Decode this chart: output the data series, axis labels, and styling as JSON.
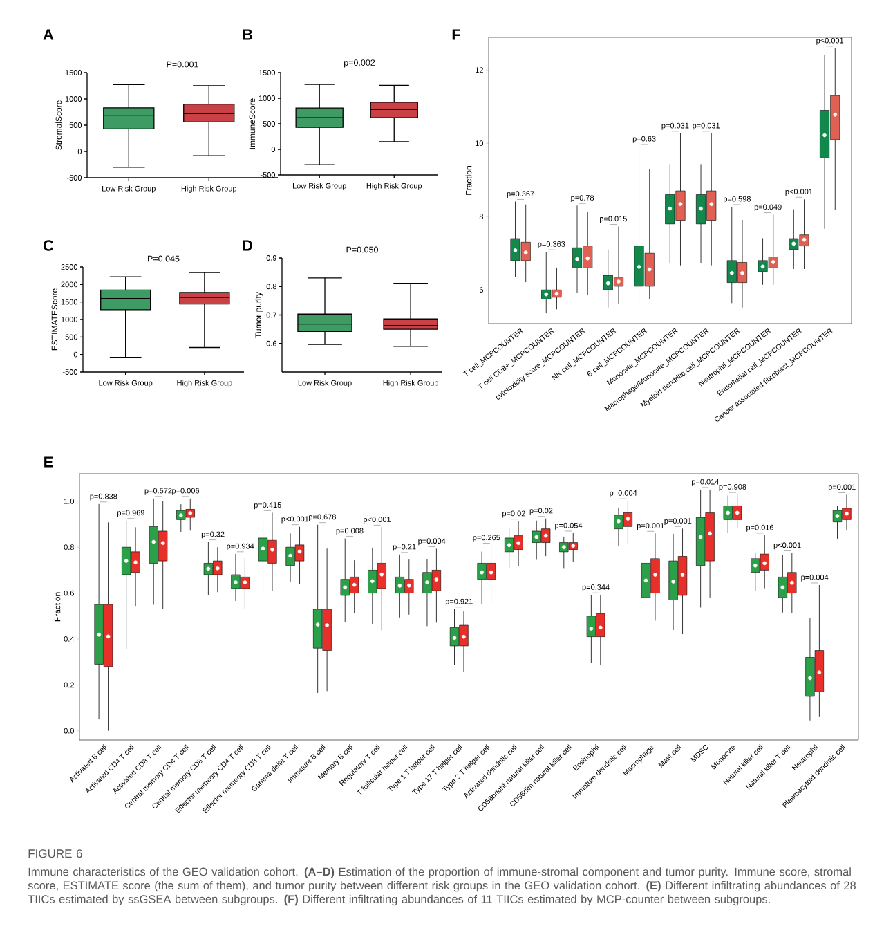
{
  "chart_data": [
    {
      "type": "box",
      "title": "P=0.001",
      "ylabel": "StromalScore",
      "categories": [
        "Low Risk Group",
        "High Risk Group"
      ],
      "colors": [
        "#3e9b63",
        "#c94045"
      ],
      "ylim": [
        -500,
        1500
      ],
      "yticks": [
        -500,
        0,
        500,
        1000,
        1500
      ],
      "boxes": [
        {
          "low": -300,
          "q1": 430,
          "median": 690,
          "q3": 830,
          "high": 1270
        },
        {
          "low": -80,
          "q1": 560,
          "median": 720,
          "q3": 900,
          "high": 1250
        }
      ],
      "annotations": [
        "A"
      ]
    },
    {
      "type": "box",
      "title": "p=0.002",
      "ylabel": "ImmuneScore",
      "categories": [
        "Low Risk Group",
        "High Risk Group"
      ],
      "colors": [
        "#3e9b63",
        "#c94045"
      ],
      "ylim": [
        -500,
        1500
      ],
      "yticks": [
        -500,
        0,
        500,
        1000,
        1500
      ],
      "boxes": [
        {
          "low": -300,
          "q1": 430,
          "median": 620,
          "q3": 810,
          "high": 1270
        },
        {
          "low": 150,
          "q1": 620,
          "median": 780,
          "q3": 920,
          "high": 1250
        }
      ],
      "annotations": [
        "B"
      ]
    },
    {
      "type": "box",
      "title": "P=0.045",
      "ylabel": "ESTIMATEScore",
      "categories": [
        "Low Risk Group",
        "High Risk Group"
      ],
      "colors": [
        "#3e9b63",
        "#c94045"
      ],
      "ylim": [
        -500,
        2500
      ],
      "yticks": [
        -500,
        0,
        500,
        1000,
        1500,
        2000,
        2500
      ],
      "boxes": [
        {
          "low": -80,
          "q1": 1280,
          "median": 1600,
          "q3": 1840,
          "high": 2220
        },
        {
          "low": 200,
          "q1": 1440,
          "median": 1630,
          "q3": 1770,
          "high": 2340
        }
      ],
      "annotations": [
        "C"
      ]
    },
    {
      "type": "box",
      "title": "P=0.050",
      "ylabel": "Tumor purity",
      "categories": [
        "Low Risk Group",
        "High Risk Group"
      ],
      "colors": [
        "#3e9b63",
        "#c94045"
      ],
      "ylim": [
        0.5,
        0.9
      ],
      "yticks": [
        0.6,
        0.7,
        0.8,
        0.9
      ],
      "boxes": [
        {
          "low": 0.597,
          "q1": 0.642,
          "median": 0.668,
          "q3": 0.703,
          "high": 0.83
        },
        {
          "low": 0.59,
          "q1": 0.65,
          "median": 0.663,
          "q3": 0.686,
          "high": 0.811
        }
      ],
      "annotations": [
        "D"
      ]
    },
    {
      "type": "box",
      "ylabel": "Fraction",
      "ylim": [
        -0.04,
        1.12
      ],
      "yticks": [
        {
          "value": 0,
          "label": "0.0"
        },
        0.2,
        0.4,
        0.6,
        0.8,
        {
          "value": 1,
          "label": "1.0"
        }
      ],
      "categories": [
        "Activated B cell",
        "Activated CD4 T cell",
        "Activated CD8 T cell",
        "Central memory CD4 T cell",
        "Central memory CD8 T cell",
        "Effector memeory CD4 T cell",
        "Effector memeory CD8 T cell",
        "Gamma delta T cell",
        "Immature  B cell",
        "Memory B cell",
        "Regulatory T cell",
        "T follicular helper cell",
        "Type 1 T helper cell",
        "Type 17 T helper cell",
        "Type 2 T helper cell",
        "Activated dendritic cell",
        "CD56bright natural killer cell",
        "CD56dim natural killer cell",
        "Eosinophil",
        "Immature dendritic cell",
        "Macrophage",
        "Mast cell",
        "MDSC",
        "Monocyte",
        "Natural killer cell",
        "Natural killer T cell",
        "Neutrophil",
        "Plasmacytoid dendritic cell"
      ],
      "series": [
        {
          "color": "#2ca048",
          "boxes": [
            {
              "low": 0.05,
              "q1": 0.29,
              "median": 0.419,
              "q3": 0.55,
              "high": 0.988
            },
            {
              "low": 0.356,
              "q1": 0.68,
              "median": 0.74,
              "q3": 0.8,
              "high": 0.916
            },
            {
              "low": 0.549,
              "q1": 0.73,
              "median": 0.823,
              "q3": 0.89,
              "high": 1.012
            },
            {
              "low": 0.867,
              "q1": 0.92,
              "median": 0.939,
              "q3": 0.96,
              "high": 0.987
            },
            {
              "low": 0.592,
              "q1": 0.68,
              "median": 0.706,
              "q3": 0.73,
              "high": 0.823
            },
            {
              "low": 0.566,
              "q1": 0.62,
              "median": 0.647,
              "q3": 0.68,
              "high": 0.771
            },
            {
              "low": 0.598,
              "q1": 0.74,
              "median": 0.794,
              "q3": 0.84,
              "high": 0.93
            },
            {
              "low": 0.65,
              "q1": 0.72,
              "median": 0.763,
              "q3": 0.8,
              "high": 0.86
            },
            {
              "low": 0.165,
              "q1": 0.36,
              "median": 0.463,
              "q3": 0.53,
              "high": 0.898
            },
            {
              "low": 0.473,
              "q1": 0.59,
              "median": 0.625,
              "q3": 0.66,
              "high": 0.838
            },
            {
              "low": 0.465,
              "q1": 0.6,
              "median": 0.652,
              "q3": 0.7,
              "high": 0.798
            },
            {
              "low": 0.494,
              "q1": 0.6,
              "median": 0.632,
              "q3": 0.67,
              "high": 0.768
            },
            {
              "low": 0.456,
              "q1": 0.6,
              "median": 0.647,
              "q3": 0.69,
              "high": 0.749
            },
            {
              "low": 0.286,
              "q1": 0.37,
              "median": 0.405,
              "q3": 0.45,
              "high": 0.53
            },
            {
              "low": 0.554,
              "q1": 0.66,
              "median": 0.69,
              "q3": 0.73,
              "high": 0.781
            },
            {
              "low": 0.71,
              "q1": 0.78,
              "median": 0.809,
              "q3": 0.84,
              "high": 0.881
            },
            {
              "low": 0.745,
              "q1": 0.82,
              "median": 0.844,
              "q3": 0.87,
              "high": 0.916
            },
            {
              "low": 0.706,
              "q1": 0.78,
              "median": 0.8,
              "q3": 0.82,
              "high": 0.846
            },
            {
              "low": 0.296,
              "q1": 0.41,
              "median": 0.445,
              "q3": 0.5,
              "high": 0.592
            },
            {
              "low": 0.806,
              "q1": 0.88,
              "median": 0.913,
              "q3": 0.94,
              "high": 0.973
            },
            {
              "low": 0.473,
              "q1": 0.58,
              "median": 0.655,
              "q3": 0.73,
              "high": 0.829
            },
            {
              "low": 0.439,
              "q1": 0.57,
              "median": 0.65,
              "q3": 0.74,
              "high": 0.858
            },
            {
              "low": 0.537,
              "q1": 0.72,
              "median": 0.844,
              "q3": 0.93,
              "high": 1.049
            },
            {
              "low": 0.861,
              "q1": 0.92,
              "median": 0.95,
              "q3": 0.98,
              "high": 1.025
            },
            {
              "low": 0.61,
              "q1": 0.69,
              "median": 0.72,
              "q3": 0.75,
              "high": 0.777
            },
            {
              "low": 0.515,
              "q1": 0.58,
              "median": 0.625,
              "q3": 0.67,
              "high": 0.766
            },
            {
              "low": 0.045,
              "q1": 0.15,
              "median": 0.23,
              "q3": 0.32,
              "high": 0.49
            },
            {
              "low": 0.837,
              "q1": 0.91,
              "median": 0.936,
              "q3": 0.96,
              "high": 0.979
            }
          ]
        },
        {
          "color": "#e8302a",
          "boxes": [
            {
              "low": 0.0,
              "q1": 0.28,
              "median": 0.411,
              "q3": 0.55,
              "high": 0.908
            },
            {
              "low": 0.544,
              "q1": 0.69,
              "median": 0.734,
              "q3": 0.78,
              "high": 0.887
            },
            {
              "low": 0.532,
              "q1": 0.74,
              "median": 0.818,
              "q3": 0.87,
              "high": 1.002
            },
            {
              "low": 0.872,
              "q1": 0.93,
              "median": 0.948,
              "q3": 0.965,
              "high": 1.012
            },
            {
              "low": 0.604,
              "q1": 0.68,
              "median": 0.708,
              "q3": 0.74,
              "high": 0.8
            },
            {
              "low": 0.531,
              "q1": 0.62,
              "median": 0.647,
              "q3": 0.67,
              "high": 0.752
            },
            {
              "low": 0.609,
              "q1": 0.73,
              "median": 0.789,
              "q3": 0.83,
              "high": 0.95
            },
            {
              "low": 0.639,
              "q1": 0.74,
              "median": 0.781,
              "q3": 0.81,
              "high": 0.889
            },
            {
              "low": 0.173,
              "q1": 0.35,
              "median": 0.46,
              "q3": 0.53,
              "high": 0.794
            },
            {
              "low": 0.512,
              "q1": 0.6,
              "median": 0.636,
              "q3": 0.67,
              "high": 0.743
            },
            {
              "low": 0.438,
              "q1": 0.62,
              "median": 0.681,
              "q3": 0.73,
              "high": 0.887
            },
            {
              "low": 0.506,
              "q1": 0.6,
              "median": 0.633,
              "q3": 0.66,
              "high": 0.746
            },
            {
              "low": 0.471,
              "q1": 0.61,
              "median": 0.659,
              "q3": 0.7,
              "high": 0.793
            },
            {
              "low": 0.255,
              "q1": 0.37,
              "median": 0.41,
              "q3": 0.46,
              "high": 0.52
            },
            {
              "low": 0.56,
              "q1": 0.66,
              "median": 0.69,
              "q3": 0.73,
              "high": 0.808
            },
            {
              "low": 0.717,
              "q1": 0.79,
              "median": 0.818,
              "q3": 0.85,
              "high": 0.913
            },
            {
              "low": 0.761,
              "q1": 0.82,
              "median": 0.85,
              "q3": 0.88,
              "high": 0.925
            },
            {
              "low": 0.737,
              "q1": 0.79,
              "median": 0.806,
              "q3": 0.82,
              "high": 0.861
            },
            {
              "low": 0.286,
              "q1": 0.41,
              "median": 0.45,
              "q3": 0.51,
              "high": 0.592
            },
            {
              "low": 0.815,
              "q1": 0.89,
              "median": 0.924,
              "q3": 0.95,
              "high": 1.002
            },
            {
              "low": 0.48,
              "q1": 0.6,
              "median": 0.68,
              "q3": 0.75,
              "high": 0.86
            },
            {
              "low": 0.421,
              "q1": 0.59,
              "median": 0.68,
              "q3": 0.76,
              "high": 0.881
            },
            {
              "low": 0.581,
              "q1": 0.74,
              "median": 0.86,
              "q3": 0.95,
              "high": 1.051
            },
            {
              "low": 0.881,
              "q1": 0.92,
              "median": 0.95,
              "q3": 0.98,
              "high": 1.029
            },
            {
              "low": 0.621,
              "q1": 0.7,
              "median": 0.73,
              "q3": 0.77,
              "high": 0.852
            },
            {
              "low": 0.512,
              "q1": 0.6,
              "median": 0.645,
              "q3": 0.69,
              "high": 0.775
            },
            {
              "low": 0.06,
              "q1": 0.17,
              "median": 0.255,
              "q3": 0.35,
              "high": 0.635
            },
            {
              "low": 0.874,
              "q1": 0.92,
              "median": 0.946,
              "q3": 0.97,
              "high": 1.028
            }
          ]
        }
      ],
      "annotations": [
        "E",
        "p=0.838",
        "p=0.969",
        "p=0.572",
        "p=0.006",
        "p=0.32",
        "p=0.934",
        "p=0.415",
        "p<0.001",
        "p=0.678",
        "p=0.008",
        "p<0.001",
        "p=0.21",
        "p=0.004",
        "p=0.921",
        "p=0.265",
        "p=0.02",
        "p=0.02",
        "p=0.054",
        "p=0.344",
        "p=0.004",
        "p=0.001",
        "p=0.001",
        "p=0.014",
        "p=0.908",
        "p=0.016",
        "p<0.001",
        "p=0.004",
        "p=0.001",
        "FIGURE 6",
        "Immune characteristics of the GEO validation cohort. **(A–D)** Estimation of the proportion of immune-stromal component and tumor purity. Immune score, stromal score, ESTIMATE score (the sum of them), and tumor purity between different risk groups in the GEO validation cohort. **(E)** Different infiltrating abundances of 28 TIICs estimated by ssGSEA between subgroups. **(F)** Different infiltrating abundances of 11 TIICs estimated by MCP-counter between subgroups."
      ]
    },
    {
      "type": "box",
      "ylabel": "Fraction",
      "ylim": [
        5.08,
        12.89
      ],
      "yticks": [
        6,
        8,
        10,
        12
      ],
      "categories": [
        "T cell_MCPCOUNTER",
        "T cell CD8+_MCPCOUNTER",
        "cytotoxicity score_MCPCOUNTER",
        "NK cell_MCPCOUNTER",
        "B cell_MCPCOUNTER",
        "Monocyte_MCPCOUNTER",
        "Macrophage/Monocyte_MCPCOUNTER",
        "Myeloid dendritic cell_MCPCOUNTER",
        "Neutrophil_MCPCOUNTER",
        "Endothelial cell_MCPCOUNTER",
        "Cancer associated fibroblast_MCPCOUNTER"
      ],
      "series": [
        {
          "color": "#13884c",
          "boxes": [
            {
              "low": 6.36,
              "q1": 6.8,
              "median": 7.08,
              "q3": 7.4,
              "high": 8.41
            },
            {
              "low": 5.36,
              "q1": 5.75,
              "median": 5.88,
              "q3": 6.0,
              "high": 7.04
            },
            {
              "low": 5.93,
              "q1": 6.6,
              "median": 6.84,
              "q3": 7.15,
              "high": 8.3
            },
            {
              "low": 5.52,
              "q1": 6.0,
              "median": 6.18,
              "q3": 6.4,
              "high": 7.1
            },
            {
              "low": 5.7,
              "q1": 6.1,
              "median": 6.63,
              "q3": 7.2,
              "high": 9.91
            },
            {
              "low": 6.72,
              "q1": 7.8,
              "median": 8.22,
              "q3": 8.6,
              "high": 9.43
            },
            {
              "low": 6.72,
              "q1": 7.8,
              "median": 8.22,
              "q3": 8.6,
              "high": 9.43
            },
            {
              "low": 5.64,
              "q1": 6.2,
              "median": 6.46,
              "q3": 6.8,
              "high": 8.27
            },
            {
              "low": 6.14,
              "q1": 6.5,
              "median": 6.64,
              "q3": 6.8,
              "high": 7.41
            },
            {
              "low": 6.57,
              "q1": 7.1,
              "median": 7.26,
              "q3": 7.4,
              "high": 8.2
            },
            {
              "low": 7.67,
              "q1": 9.6,
              "median": 10.22,
              "q3": 10.9,
              "high": 12.42
            }
          ]
        },
        {
          "color": "#e06153",
          "boxes": [
            {
              "low": 6.21,
              "q1": 6.8,
              "median": 7.02,
              "q3": 7.3,
              "high": 8.33
            },
            {
              "low": 5.47,
              "q1": 5.8,
              "median": 5.9,
              "q3": 6.0,
              "high": 6.61
            },
            {
              "low": 5.87,
              "q1": 6.6,
              "median": 6.86,
              "q3": 7.2,
              "high": 8.12
            },
            {
              "low": 5.63,
              "q1": 6.1,
              "median": 6.23,
              "q3": 6.35,
              "high": 7.73
            },
            {
              "low": 5.74,
              "q1": 6.1,
              "median": 6.56,
              "q3": 7.0,
              "high": 9.29
            },
            {
              "low": 6.67,
              "q1": 7.9,
              "median": 8.34,
              "q3": 8.7,
              "high": 10.27
            },
            {
              "low": 6.67,
              "q1": 7.9,
              "median": 8.34,
              "q3": 8.7,
              "high": 10.27
            },
            {
              "low": 5.52,
              "q1": 6.2,
              "median": 6.46,
              "q3": 6.75,
              "high": 7.91
            },
            {
              "low": 6.14,
              "q1": 6.6,
              "median": 6.76,
              "q3": 6.9,
              "high": 8.05
            },
            {
              "low": 6.57,
              "q1": 7.2,
              "median": 7.37,
              "q3": 7.5,
              "high": 8.47
            },
            {
              "low": 8.18,
              "q1": 10.1,
              "median": 10.78,
              "q3": 11.3,
              "high": 12.59
            }
          ]
        }
      ],
      "annotations": [
        "F",
        "p=0.367",
        "p=0.363",
        "p=0.78",
        "p=0.015",
        "p=0.63",
        "p=0.031",
        "p=0.031",
        "p=0.598",
        "p=0.049",
        "p<0.001",
        "p<0.001"
      ]
    }
  ]
}
